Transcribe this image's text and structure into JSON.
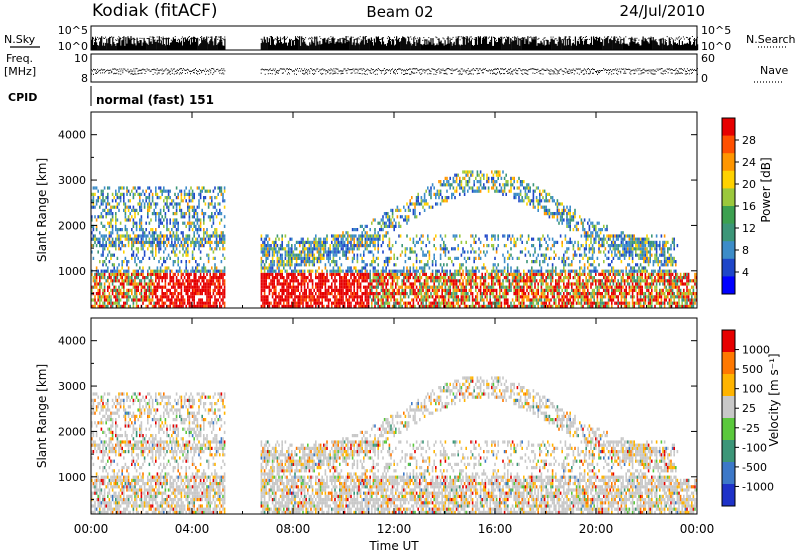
{
  "header": {
    "station": "Kodiak (fitACF)",
    "beam": "Beam 02",
    "date": "24/Jul/2010"
  },
  "nsky_panel": {
    "label": "N.Sky",
    "right_label": "N.Search",
    "left_ticks": [
      "10^5",
      "10^0"
    ],
    "right_ticks": [
      "10^5",
      "10^0"
    ]
  },
  "freq_panel": {
    "label_line1": "Freq.",
    "label_line2": "[MHz]",
    "left_ticks": [
      "10",
      "8"
    ],
    "right_ticks": [
      "60",
      "0"
    ],
    "right_label": "Nave"
  },
  "cpid": {
    "label": "CPID",
    "value": "normal (fast) 151"
  },
  "x_axis": {
    "label": "Time UT",
    "ticks": [
      "00:00",
      "04:00",
      "08:00",
      "12:00",
      "16:00",
      "20:00",
      "00:00"
    ]
  },
  "power_panel": {
    "ylabel": "Slant Range [km]",
    "yticks": [
      "4000",
      "3000",
      "2000",
      "1000"
    ],
    "colorbar_label": "Power [dB]",
    "colorbar_ticks": [
      "28",
      "24",
      "20",
      "16",
      "12",
      "8",
      "4"
    ],
    "colors": [
      "#0000ff",
      "#1e46c8",
      "#3c8cc8",
      "#3c9678",
      "#3ca050",
      "#9bc83c",
      "#ffd200",
      "#ff9600",
      "#ff5000",
      "#e60000"
    ]
  },
  "velocity_panel": {
    "ylabel": "Slant Range [km]",
    "yticks": [
      "4000",
      "3000",
      "2000",
      "1000"
    ],
    "colorbar_label": "Velocity [m s⁻¹]",
    "colorbar_ticks": [
      "1000",
      "500",
      "100",
      "25",
      "-25",
      "-100",
      "-500",
      "-1000"
    ],
    "colors": [
      "#1e32c8",
      "#3c78c8",
      "#3c9678",
      "#5ac83c",
      "#c8c8c8",
      "#ffb400",
      "#ff7800",
      "#e60000"
    ]
  },
  "chart_data": {
    "type": "heatmap",
    "x_range_hours": [
      0,
      24
    ],
    "y_range_km": [
      180,
      4500
    ],
    "data_gap_hours": [
      5.3,
      6.7
    ],
    "power_dB_range": [
      0,
      30
    ],
    "velocity_ms_range": [
      -1000,
      1000
    ],
    "frequency_MHz_range": [
      8,
      10
    ],
    "nave_range": [
      0,
      60
    ]
  }
}
